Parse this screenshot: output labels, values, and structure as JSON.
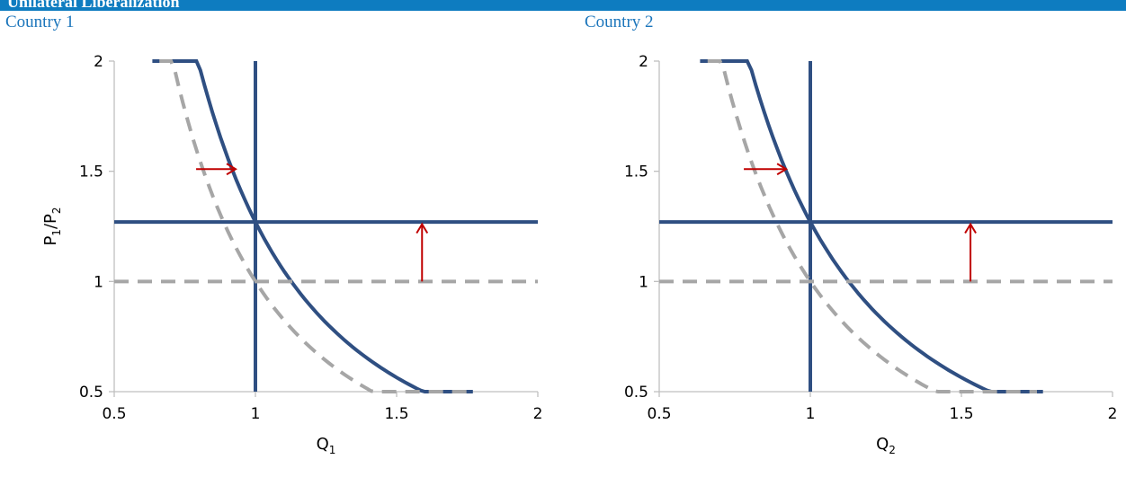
{
  "header": {
    "title": "Unilateral Liberalization"
  },
  "colors": {
    "solid": "#2f4f82",
    "dashed": "#a6a6a6",
    "arrow": "#c00000",
    "axis": "#bfbfbf"
  },
  "chart_data": [
    {
      "type": "line",
      "panel_label": "Country 1",
      "xlabel_main": "Q",
      "xlabel_sub": "1",
      "ylabel": {
        "p": "P",
        "sub1": "1",
        "slash": "/",
        "p2": "P",
        "sub2": "2"
      },
      "xlim": [
        0.5,
        2
      ],
      "ylim": [
        0.5,
        2
      ],
      "xticks": [
        "0.5",
        "1",
        "1.5",
        "2"
      ],
      "yticks": [
        "0.5",
        "1",
        "1.5",
        "2"
      ],
      "series": [
        {
          "style": "solid",
          "kind": "hyperbola",
          "k": 1.27,
          "x_range": [
            0.635,
            1.77
          ]
        },
        {
          "style": "solid",
          "kind": "vline",
          "x": 1
        },
        {
          "style": "solid",
          "kind": "hline",
          "y": 1.27
        },
        {
          "style": "dashed",
          "kind": "hyperbola",
          "k": 1.0,
          "x_range": [
            0.66,
            1.75
          ]
        },
        {
          "style": "dashed",
          "kind": "hline",
          "y": 1.0
        }
      ],
      "annotations": [
        {
          "type": "arrow",
          "from": [
            0.79,
            1.51
          ],
          "to": [
            0.93,
            1.51
          ]
        },
        {
          "type": "arrow",
          "from": [
            1.59,
            1.0
          ],
          "to": [
            1.59,
            1.26
          ]
        }
      ]
    },
    {
      "type": "line",
      "panel_label": "Country 2",
      "xlabel_main": "Q",
      "xlabel_sub": "2",
      "ylabel": null,
      "xlim": [
        0.5,
        2
      ],
      "ylim": [
        0.5,
        2
      ],
      "xticks": [
        "0.5",
        "1",
        "1.5",
        "2"
      ],
      "yticks": [
        "0.5",
        "1",
        "1.5",
        "2"
      ],
      "series": [
        {
          "style": "solid",
          "kind": "hyperbola",
          "k": 1.27,
          "x_range": [
            0.635,
            1.77
          ]
        },
        {
          "style": "solid",
          "kind": "vline",
          "x": 1
        },
        {
          "style": "solid",
          "kind": "hline",
          "y": 1.27
        },
        {
          "style": "dashed",
          "kind": "hyperbola",
          "k": 1.0,
          "x_range": [
            0.66,
            1.75
          ]
        },
        {
          "style": "dashed",
          "kind": "hline",
          "y": 1.0
        }
      ],
      "annotations": [
        {
          "type": "arrow",
          "from": [
            0.78,
            1.51
          ],
          "to": [
            0.92,
            1.51
          ]
        },
        {
          "type": "arrow",
          "from": [
            1.53,
            1.0
          ],
          "to": [
            1.53,
            1.26
          ]
        }
      ]
    }
  ]
}
